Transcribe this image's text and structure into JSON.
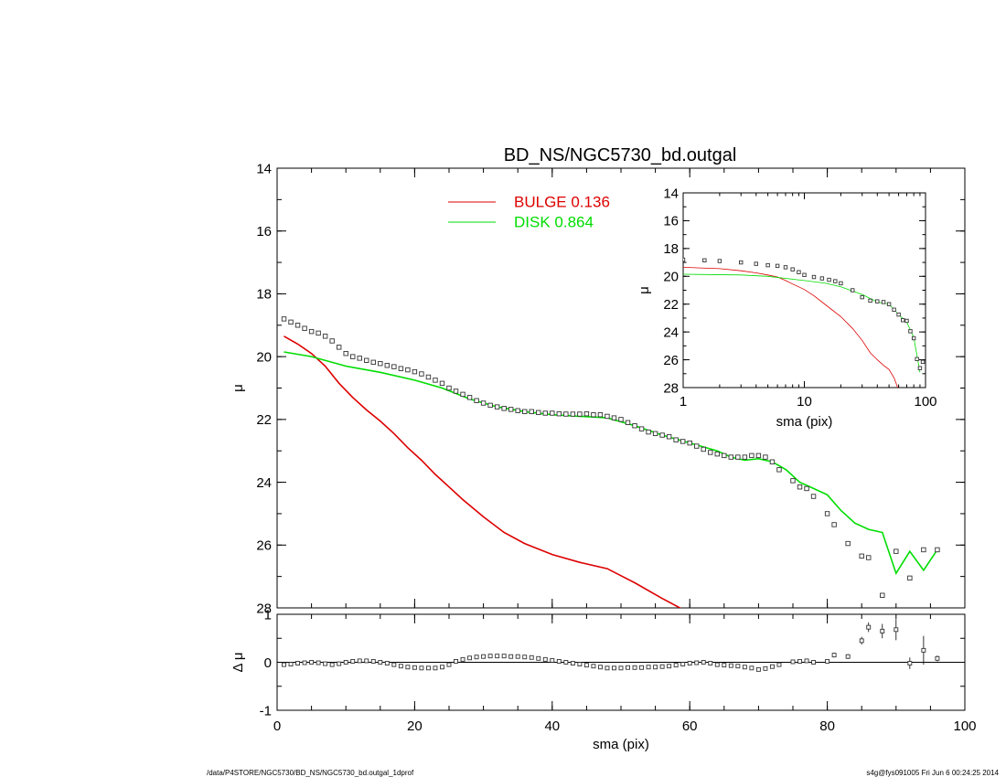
{
  "title": "BD_NS/NGC5730_bd.outgal",
  "footer": {
    "left": "/data/P4STORE/NGC5730/BD_NS/NGC5730_bd.outgal_1dprof",
    "right": "s4g@fys091005  Fri Jun  6 00:24:25 2014"
  },
  "colors": {
    "bulge": "#dd0000",
    "disk": "#00dd00",
    "data": "#000000"
  },
  "chart_data": [
    {
      "panel": "main",
      "type": "line",
      "title": "BD_NS/NGC5730_bd.outgal",
      "xlabel": "sma (pix)",
      "ylabel": "μ",
      "xlim": [
        0,
        100
      ],
      "ylim": [
        28,
        14
      ],
      "xticks": [
        0,
        20,
        40,
        60,
        80,
        100
      ],
      "yticks": [
        14,
        16,
        18,
        20,
        22,
        24,
        26,
        28
      ],
      "legend": {
        "placement": "top-center",
        "entries": [
          {
            "label": "BULGE  0.136",
            "color": "#dd0000"
          },
          {
            "label": "DISK  0.864",
            "color": "#00dd00"
          }
        ]
      },
      "series": [
        {
          "name": "BULGE  0.136",
          "style": "line",
          "color": "#dd0000",
          "x": [
            1,
            3,
            5,
            7,
            9,
            11,
            13,
            15,
            17,
            19,
            21,
            23,
            25,
            27,
            30,
            33,
            36,
            40,
            44,
            48,
            52,
            56,
            59
          ],
          "y": [
            19.35,
            19.6,
            19.9,
            20.3,
            20.85,
            21.3,
            21.7,
            22.05,
            22.45,
            22.9,
            23.3,
            23.75,
            24.15,
            24.55,
            25.1,
            25.6,
            25.95,
            26.3,
            26.55,
            26.75,
            27.2,
            27.7,
            28.05
          ]
        },
        {
          "name": "DISK  0.864",
          "style": "line",
          "color": "#00dd00",
          "x": [
            1,
            5,
            10,
            15,
            20,
            24,
            28,
            32,
            36,
            40,
            44,
            48,
            52,
            56,
            60,
            64,
            66,
            68,
            70,
            72,
            74,
            76,
            78,
            80,
            82,
            84,
            86,
            88,
            90,
            92,
            94,
            96
          ],
          "y": [
            19.85,
            20.0,
            20.3,
            20.5,
            20.75,
            21.0,
            21.35,
            21.6,
            21.75,
            21.85,
            21.9,
            21.95,
            22.2,
            22.5,
            22.75,
            23.0,
            23.2,
            23.3,
            23.25,
            23.35,
            23.6,
            24.0,
            24.2,
            24.4,
            24.9,
            25.3,
            25.5,
            25.6,
            26.9,
            26.2,
            26.8,
            26.15
          ]
        },
        {
          "name": "",
          "style": "markers",
          "color": "#000000",
          "x": [
            1,
            2,
            3,
            4,
            5,
            6,
            7,
            8,
            9,
            10,
            11,
            12,
            13,
            14,
            15,
            16,
            17,
            18,
            19,
            20,
            21,
            22,
            23,
            24,
            25,
            26,
            27,
            28,
            29,
            30,
            31,
            32,
            33,
            34,
            35,
            36,
            37,
            38,
            39,
            40,
            41,
            42,
            43,
            44,
            45,
            46,
            47,
            48,
            49,
            50,
            51,
            52,
            53,
            54,
            55,
            56,
            57,
            58,
            59,
            60,
            61,
            62,
            63,
            64,
            65,
            66,
            67,
            68,
            69,
            70,
            71,
            72,
            73,
            75,
            76,
            77,
            78,
            80,
            81,
            83,
            85,
            86,
            88,
            90,
            92,
            94,
            96
          ],
          "y": [
            18.8,
            18.9,
            19.0,
            19.1,
            19.2,
            19.25,
            19.35,
            19.5,
            19.7,
            19.9,
            20.0,
            20.05,
            20.12,
            20.18,
            20.22,
            20.28,
            20.32,
            20.38,
            20.42,
            20.48,
            20.55,
            20.65,
            20.75,
            20.85,
            21.0,
            21.1,
            21.2,
            21.3,
            21.4,
            21.48,
            21.55,
            21.6,
            21.65,
            21.68,
            21.72,
            21.75,
            21.75,
            21.78,
            21.8,
            21.8,
            21.82,
            21.83,
            21.83,
            21.83,
            21.82,
            21.85,
            21.85,
            21.9,
            21.95,
            22.0,
            22.1,
            22.2,
            22.3,
            22.4,
            22.45,
            22.5,
            22.55,
            22.65,
            22.7,
            22.75,
            22.85,
            22.95,
            23.05,
            23.1,
            23.15,
            23.2,
            23.2,
            23.2,
            23.15,
            23.15,
            23.2,
            23.35,
            23.6,
            23.95,
            24.15,
            24.2,
            24.45,
            25.0,
            25.35,
            25.95,
            26.35,
            26.4,
            27.6,
            26.2,
            27.05,
            26.15,
            26.15
          ]
        }
      ]
    },
    {
      "panel": "inset",
      "type": "line",
      "xscale": "log",
      "xlabel": "sma (pix)",
      "ylabel": "μ",
      "xlim": [
        1,
        100
      ],
      "ylim": [
        28,
        14
      ],
      "xticks": [
        1,
        10,
        100
      ],
      "yticks": [
        14,
        16,
        18,
        20,
        22,
        24,
        26,
        28
      ],
      "series": [
        {
          "name": "BULGE  0.136",
          "style": "line",
          "color": "#dd0000",
          "x": [
            1,
            2,
            3,
            4,
            5,
            6,
            7,
            8,
            10,
            12,
            15,
            20,
            25,
            30,
            35,
            40,
            45,
            50,
            55,
            59
          ],
          "y": [
            19.35,
            19.45,
            19.6,
            19.75,
            19.9,
            20.05,
            20.3,
            20.55,
            20.95,
            21.4,
            22.05,
            22.9,
            23.75,
            24.6,
            25.5,
            26.0,
            26.4,
            26.7,
            27.3,
            28.0
          ]
        },
        {
          "name": "DISK  0.864",
          "style": "line",
          "color": "#00dd00",
          "x": [
            1,
            3,
            5,
            10,
            15,
            20,
            30,
            40,
            50,
            60,
            70,
            80,
            90
          ],
          "y": [
            19.85,
            19.9,
            20.0,
            20.3,
            20.5,
            20.75,
            21.3,
            21.85,
            22.0,
            22.75,
            23.3,
            24.4,
            26.9
          ]
        },
        {
          "name": "",
          "style": "markers",
          "color": "#000000",
          "x": [
            1,
            1.5,
            2,
            3,
            4,
            5,
            6,
            7,
            8,
            9,
            10,
            12,
            14,
            16,
            18,
            20,
            25,
            30,
            35,
            40,
            45,
            50,
            55,
            60,
            65,
            70,
            75,
            80,
            85,
            90,
            95
          ],
          "y": [
            18.8,
            18.85,
            18.9,
            19.0,
            19.1,
            19.2,
            19.25,
            19.35,
            19.5,
            19.7,
            19.9,
            20.05,
            20.15,
            20.25,
            20.35,
            20.5,
            21.0,
            21.5,
            21.75,
            21.8,
            21.85,
            22.0,
            22.4,
            22.75,
            23.15,
            23.2,
            23.95,
            24.45,
            25.95,
            26.6,
            26.15
          ]
        }
      ]
    },
    {
      "panel": "residual",
      "type": "scatter",
      "xlabel": "sma (pix)",
      "ylabel": "Δ μ",
      "xlim": [
        0,
        100
      ],
      "ylim": [
        -1,
        1
      ],
      "xticks": [
        0,
        20,
        40,
        60,
        80,
        100
      ],
      "yticks": [
        -1,
        0,
        1
      ],
      "series": [
        {
          "name": "",
          "style": "markers",
          "color": "#000000",
          "x": [
            1,
            2,
            3,
            4,
            5,
            6,
            7,
            8,
            9,
            10,
            11,
            12,
            13,
            14,
            15,
            16,
            17,
            18,
            19,
            20,
            21,
            22,
            23,
            24,
            25,
            26,
            27,
            28,
            29,
            30,
            31,
            32,
            33,
            34,
            35,
            36,
            37,
            38,
            39,
            40,
            41,
            42,
            43,
            44,
            45,
            46,
            47,
            48,
            49,
            50,
            51,
            52,
            53,
            54,
            55,
            56,
            57,
            58,
            59,
            60,
            61,
            62,
            63,
            64,
            65,
            66,
            67,
            68,
            69,
            70,
            71,
            72,
            73,
            75,
            76,
            77,
            78,
            80,
            81,
            83,
            85,
            86,
            88,
            90,
            92,
            94,
            96
          ],
          "y": [
            -0.05,
            -0.04,
            -0.02,
            -0.01,
            0.0,
            -0.01,
            -0.03,
            -0.05,
            -0.03,
            0.0,
            0.02,
            0.03,
            0.03,
            0.02,
            0.0,
            -0.02,
            -0.05,
            -0.08,
            -0.1,
            -0.11,
            -0.12,
            -0.12,
            -0.12,
            -0.1,
            -0.05,
            0.02,
            0.06,
            0.09,
            0.11,
            0.12,
            0.13,
            0.13,
            0.13,
            0.12,
            0.12,
            0.11,
            0.1,
            0.08,
            0.06,
            0.04,
            0.02,
            0.0,
            -0.02,
            -0.04,
            -0.06,
            -0.08,
            -0.1,
            -0.12,
            -0.12,
            -0.12,
            -0.11,
            -0.11,
            -0.11,
            -0.1,
            -0.1,
            -0.09,
            -0.08,
            -0.06,
            -0.04,
            -0.02,
            -0.01,
            0.0,
            -0.02,
            -0.05,
            -0.06,
            -0.07,
            -0.08,
            -0.1,
            -0.12,
            -0.15,
            -0.13,
            -0.09,
            -0.05,
            0.01,
            0.02,
            0.03,
            0.0,
            0.02,
            0.15,
            0.12,
            0.45,
            0.73,
            0.65,
            0.68,
            -0.02,
            0.25,
            0.08
          ],
          "err": [
            0,
            0,
            0,
            0,
            0,
            0,
            0,
            0,
            0,
            0,
            0,
            0,
            0,
            0,
            0,
            0,
            0,
            0,
            0,
            0,
            0,
            0,
            0,
            0,
            0,
            0,
            0,
            0,
            0,
            0,
            0,
            0,
            0,
            0,
            0,
            0,
            0,
            0,
            0,
            0,
            0,
            0,
            0,
            0,
            0,
            0,
            0,
            0,
            0,
            0,
            0,
            0,
            0,
            0,
            0,
            0,
            0,
            0,
            0,
            0,
            0,
            0,
            0,
            0,
            0,
            0,
            0,
            0,
            0,
            0,
            0,
            0,
            0,
            0,
            0,
            0,
            0,
            0,
            0.05,
            0.05,
            0.08,
            0.1,
            0.15,
            0.22,
            0.12,
            0.3,
            0.06
          ]
        }
      ]
    }
  ]
}
